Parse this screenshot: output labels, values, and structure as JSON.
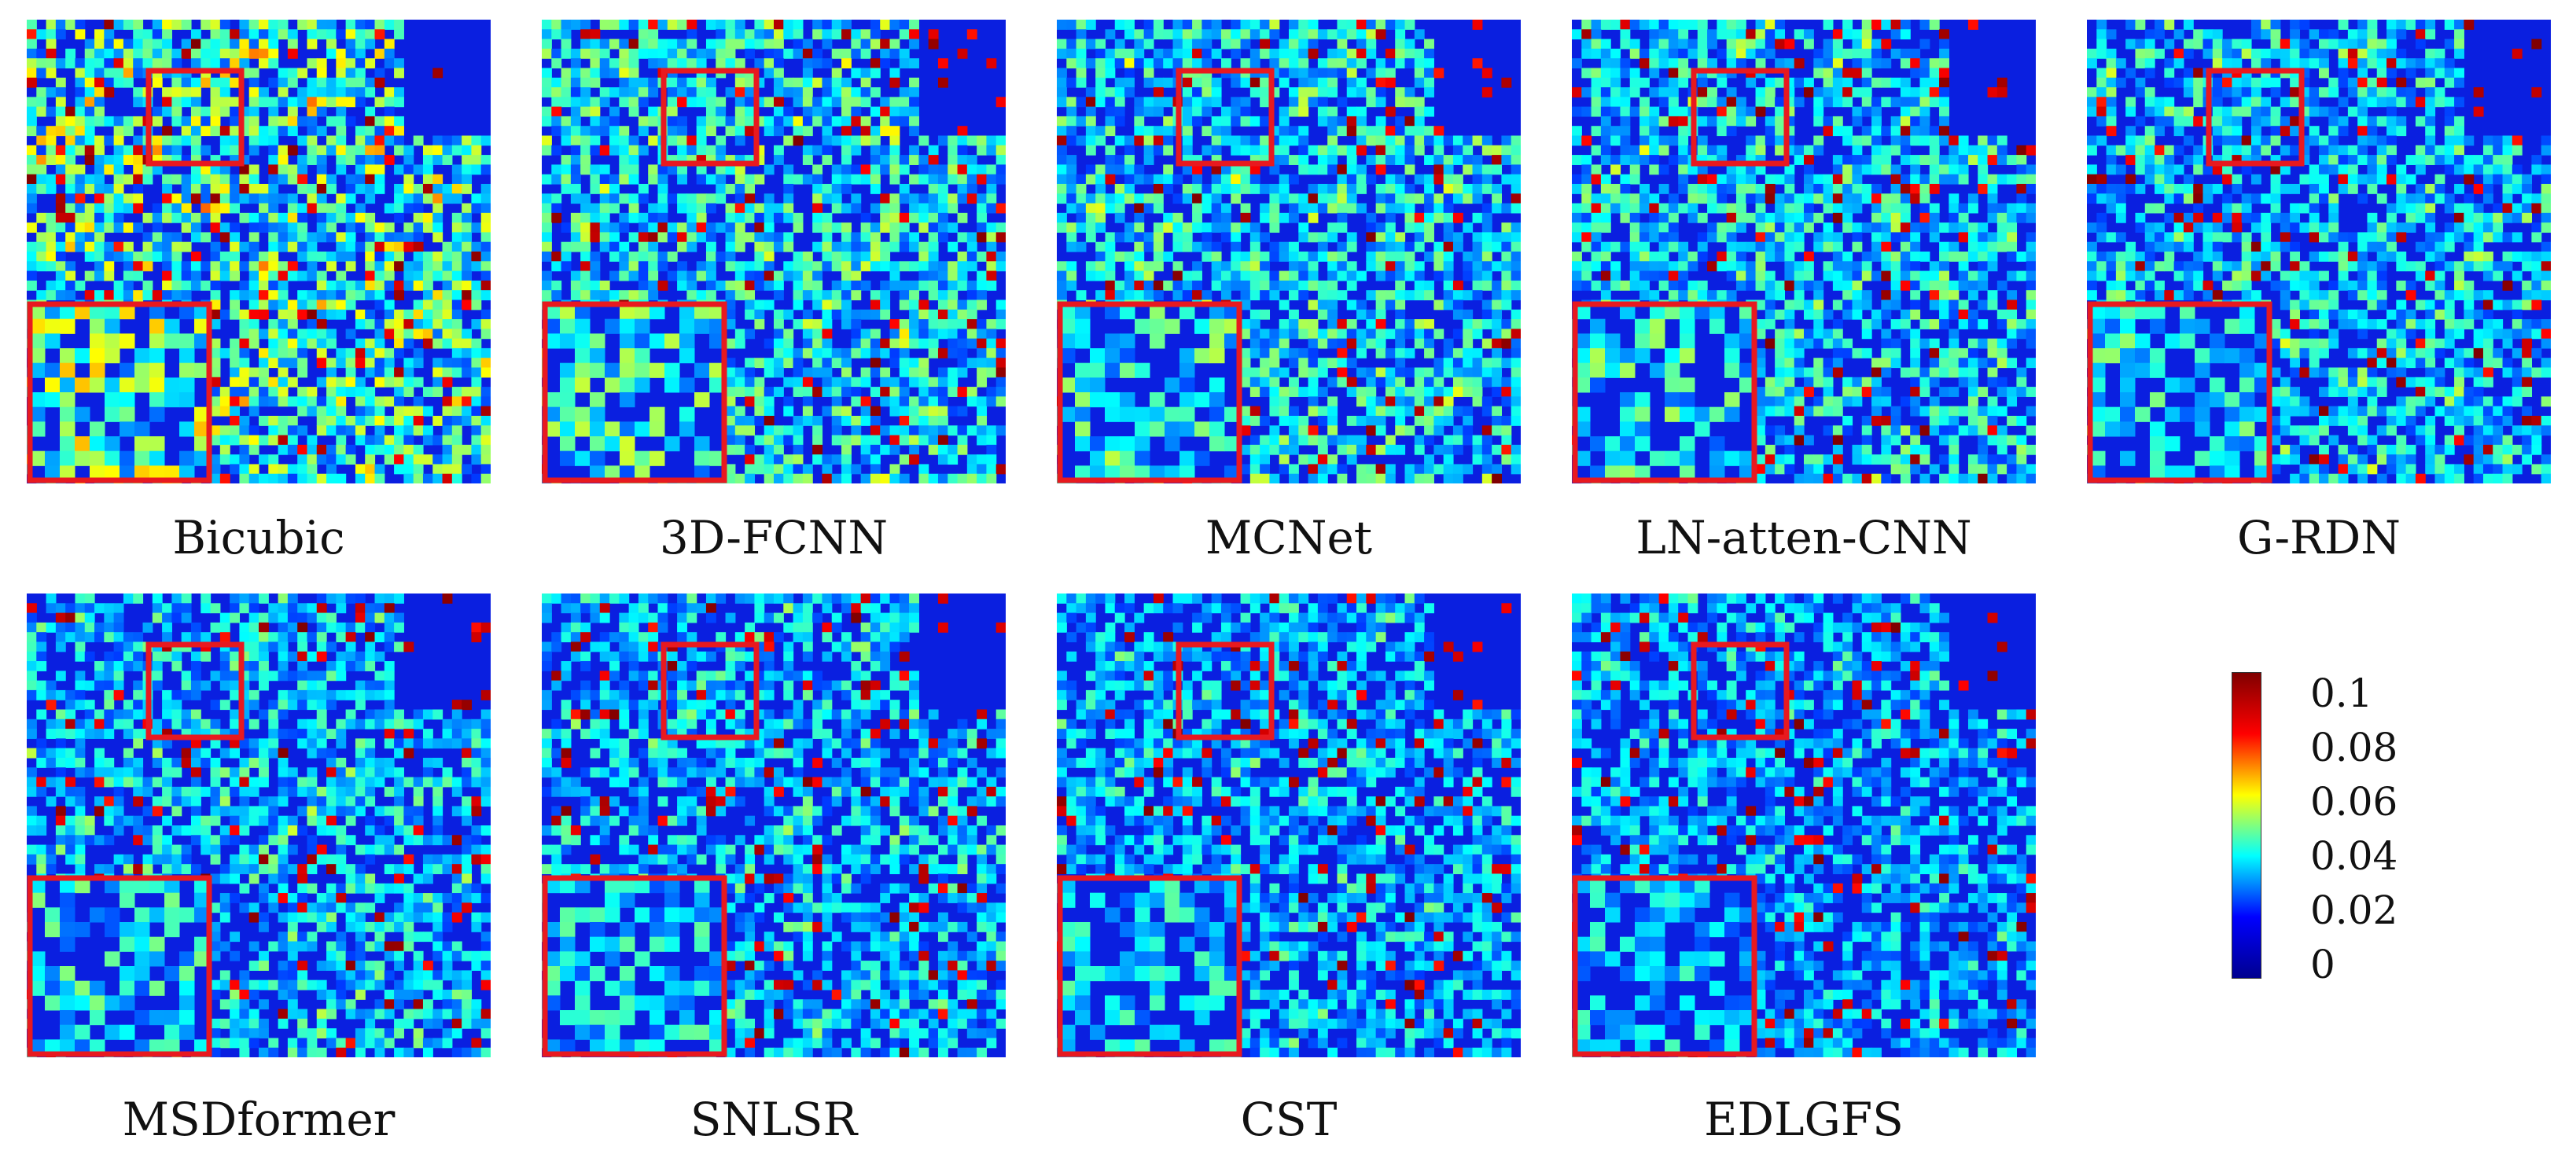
{
  "panels": [
    {
      "label": "Bicubic"
    },
    {
      "label": "3D-FCNN"
    },
    {
      "label": "MCNet"
    },
    {
      "label": "LN-atten-CNN"
    },
    {
      "label": "G-RDN"
    },
    {
      "label": "MSDformer"
    },
    {
      "label": "SNLSR"
    },
    {
      "label": "CST"
    },
    {
      "label": "EDLGFS"
    }
  ],
  "colorbar": {
    "ticks": [
      "0.1",
      "0.08",
      "0.06",
      "0.04",
      "0.02",
      "0"
    ],
    "colormap": [
      "#00008f",
      "#0000ff",
      "#00ffff",
      "#ffff00",
      "#ff0000",
      "#800000"
    ]
  },
  "highlight_color": "#e8191f"
}
